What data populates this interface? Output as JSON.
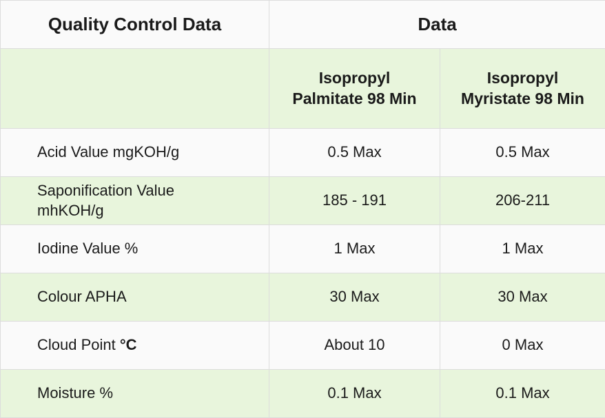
{
  "table": {
    "header": {
      "title": "Quality Control Data",
      "group": "Data"
    },
    "columns": [
      {
        "lines": [
          "Isopropyl",
          "Palmitate 98 Min"
        ]
      },
      {
        "lines": [
          "Isopropyl",
          "Myristate 98 Min"
        ]
      }
    ],
    "rows": [
      {
        "label": "Acid Value mgKOH/g",
        "values": [
          "0.5 Max",
          "0.5 Max"
        ]
      },
      {
        "label": "Saponification Value mhKOH/g",
        "values": [
          "185 - 191",
          "206-211"
        ]
      },
      {
        "label": "Iodine Value %",
        "values": [
          "1 Max",
          "1 Max"
        ]
      },
      {
        "label": "Colour APHA",
        "values": [
          "30 Max",
          "30 Max"
        ]
      },
      {
        "label": "Cloud Point",
        "unit": "°C",
        "values": [
          "About 10",
          "0 Max"
        ]
      },
      {
        "label": "Moisture %",
        "values": [
          "0.1 Max",
          "0.1 Max"
        ]
      }
    ]
  }
}
